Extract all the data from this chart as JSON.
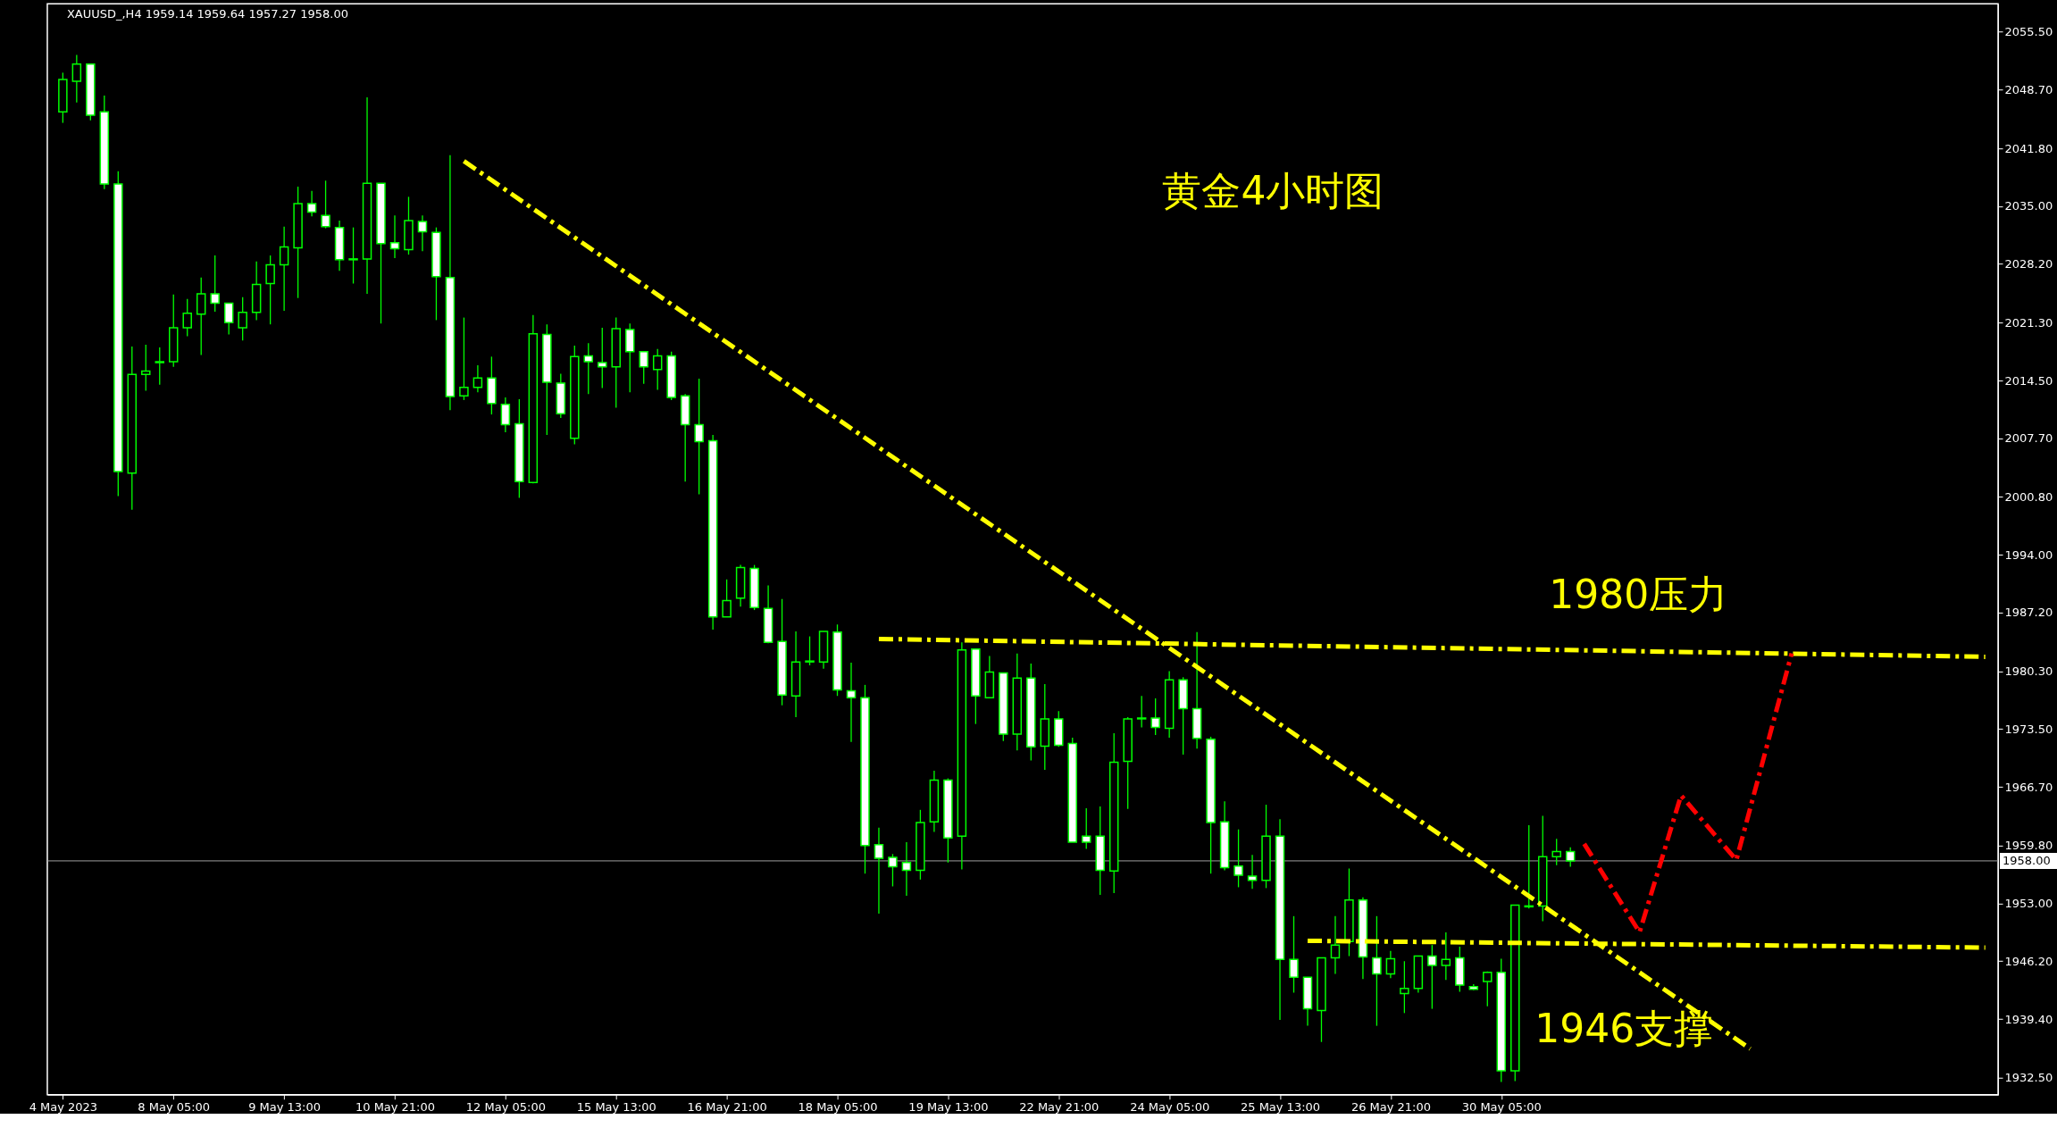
{
  "chart_data": {
    "type": "candlestick",
    "title": "黄金4小时图",
    "annotations": [
      "XAUUSD_,H4  1959.14 1959.64 1957.27 1958.00",
      "1980压力",
      "1946支撑"
    ],
    "categories": [
      "4 May 2023",
      null,
      null,
      null,
      null,
      null,
      null,
      null,
      "8 May 05:00",
      null,
      null,
      null,
      null,
      null,
      null,
      null,
      "9 May 13:00",
      null,
      null,
      null,
      null,
      null,
      null,
      null,
      "10 May 21:00",
      null,
      null,
      null,
      null,
      null,
      null,
      null,
      "12 May 05:00",
      null,
      null,
      null,
      null,
      null,
      null,
      null,
      "15 May 13:00",
      null,
      null,
      null,
      null,
      null,
      null,
      null,
      "16 May 21:00",
      null,
      null,
      null,
      null,
      null,
      null,
      null,
      "18 May 05:00",
      null,
      null,
      null,
      null,
      null,
      null,
      null,
      "19 May 13:00",
      null,
      null,
      null,
      null,
      null,
      null,
      null,
      "22 May 21:00",
      null,
      null,
      null,
      null,
      null,
      null,
      null,
      "24 May 05:00",
      null,
      null,
      null,
      null,
      null,
      null,
      null,
      "25 May 13:00",
      null,
      null,
      null,
      null,
      null,
      null,
      null,
      "26 May 21:00",
      null,
      null,
      null,
      null,
      null,
      null,
      null,
      "30 May 05:00",
      null,
      null,
      null,
      null,
      null,
      null,
      null,
      null,
      null,
      null,
      null,
      null,
      null,
      null,
      null,
      null,
      null,
      null,
      null,
      null,
      null,
      null,
      null,
      null,
      null,
      null,
      null,
      null,
      null,
      null,
      null,
      null,
      null,
      null,
      null
    ],
    "color": "#00ff00",
    "ohlc": [
      [
        2046.1,
        2050.7,
        2044.8,
        2049.9
      ],
      [
        2049.7,
        2052.8,
        2047.2,
        2051.7
      ],
      [
        2051.7,
        2051.8,
        2045.1,
        2045.7
      ],
      [
        2046.1,
        2048.0,
        2037.0,
        2037.6
      ],
      [
        2037.6,
        2039.1,
        2000.9,
        2003.8
      ],
      [
        2003.6,
        2018.5,
        1999.3,
        2015.2
      ],
      [
        2015.2,
        2018.7,
        2013.3,
        2015.6
      ],
      [
        2016.6,
        2018.4,
        2014.0,
        2016.7
      ],
      [
        2016.7,
        2024.6,
        2016.1,
        2020.7
      ],
      [
        2020.7,
        2024.1,
        2019.7,
        2022.4
      ],
      [
        2022.3,
        2026.6,
        2017.5,
        2024.7
      ],
      [
        2024.7,
        2029.2,
        2022.6,
        2023.6
      ],
      [
        2023.6,
        2023.6,
        2019.9,
        2021.3
      ],
      [
        2020.7,
        2024.3,
        2019.2,
        2022.5
      ],
      [
        2022.5,
        2028.5,
        2021.6,
        2025.8
      ],
      [
        2025.9,
        2029.2,
        2021.1,
        2028.1
      ],
      [
        2028.1,
        2032.6,
        2022.7,
        2030.2
      ],
      [
        2030.1,
        2037.3,
        2024.2,
        2035.3
      ],
      [
        2035.3,
        2036.8,
        2033.8,
        2034.3
      ],
      [
        2033.9,
        2038.0,
        2032.4,
        2032.6
      ],
      [
        2032.5,
        2033.3,
        2027.4,
        2028.7
      ],
      [
        2028.7,
        2032.5,
        2025.9,
        2028.8
      ],
      [
        2028.8,
        2047.8,
        2024.7,
        2037.7
      ],
      [
        2037.7,
        2037.7,
        2021.2,
        2030.6
      ],
      [
        2030.7,
        2033.9,
        2028.9,
        2030.0
      ],
      [
        2029.9,
        2036.1,
        2029.3,
        2033.3
      ],
      [
        2033.2,
        2033.9,
        2029.7,
        2032.0
      ],
      [
        2031.9,
        2032.5,
        2021.6,
        2026.7
      ],
      [
        2026.6,
        2041.0,
        2011.0,
        2012.6
      ],
      [
        2012.7,
        2021.9,
        2012.2,
        2013.7
      ],
      [
        2013.7,
        2016.3,
        2013.1,
        2014.8
      ],
      [
        2014.8,
        2017.3,
        2010.5,
        2011.8
      ],
      [
        2011.7,
        2012.5,
        2008.4,
        2009.3
      ],
      [
        2009.4,
        2012.3,
        2000.7,
        2002.6
      ],
      [
        2002.5,
        2022.2,
        2002.4,
        2020.0
      ],
      [
        2019.9,
        2021.1,
        2008.1,
        2014.3
      ],
      [
        2014.2,
        2015.3,
        2010.1,
        2010.6
      ],
      [
        2007.7,
        2018.6,
        2007.0,
        2017.3
      ],
      [
        2017.4,
        2018.9,
        2012.9,
        2016.7
      ],
      [
        2016.6,
        2020.7,
        2013.6,
        2016.1
      ],
      [
        2016.1,
        2021.9,
        2011.3,
        2020.6
      ],
      [
        2020.5,
        2021.2,
        2013.1,
        2017.9
      ],
      [
        2017.9,
        2017.9,
        2014.1,
        2016.1
      ],
      [
        2015.8,
        2018.2,
        2013.4,
        2017.4
      ],
      [
        2017.4,
        2017.9,
        2012.2,
        2012.5
      ],
      [
        2012.7,
        2012.9,
        2002.6,
        2009.3
      ],
      [
        2009.3,
        2014.7,
        2001.1,
        2007.3
      ],
      [
        2007.4,
        2008.1,
        1985.2,
        1986.7
      ],
      [
        1986.7,
        1991.1,
        1986.7,
        1988.6
      ],
      [
        1988.9,
        1992.8,
        1987.9,
        1992.5
      ],
      [
        1992.4,
        1992.8,
        1987.5,
        1987.8
      ],
      [
        1987.7,
        1990.4,
        1983.6,
        1983.7
      ],
      [
        1983.8,
        1988.8,
        1976.3,
        1977.5
      ],
      [
        1977.4,
        1985.0,
        1974.9,
        1981.4
      ],
      [
        1981.4,
        1984.4,
        1981.0,
        1981.5
      ],
      [
        1981.4,
        1985.0,
        1980.6,
        1985.0
      ],
      [
        1984.9,
        1985.8,
        1977.4,
        1978.1
      ],
      [
        1978.0,
        1981.3,
        1972.0,
        1977.2
      ],
      [
        1977.2,
        1978.7,
        1956.5,
        1959.8
      ],
      [
        1959.9,
        1961.9,
        1951.8,
        1958.3
      ],
      [
        1958.4,
        1958.8,
        1955.0,
        1957.3
      ],
      [
        1957.8,
        1960.2,
        1953.9,
        1956.9
      ],
      [
        1956.9,
        1964.0,
        1955.8,
        1962.5
      ],
      [
        1962.6,
        1968.6,
        1961.4,
        1967.5
      ],
      [
        1967.5,
        1967.7,
        1957.8,
        1960.7
      ],
      [
        1960.9,
        1983.7,
        1957.0,
        1982.8
      ],
      [
        1982.9,
        1982.9,
        1974.1,
        1977.4
      ],
      [
        1977.2,
        1982.1,
        1977.2,
        1980.2
      ],
      [
        1980.1,
        1980.1,
        1972.1,
        1972.9
      ],
      [
        1972.9,
        1982.4,
        1971.0,
        1979.5
      ],
      [
        1979.5,
        1981.2,
        1969.8,
        1971.4
      ],
      [
        1971.5,
        1978.8,
        1968.7,
        1974.7
      ],
      [
        1974.7,
        1975.6,
        1971.4,
        1971.6
      ],
      [
        1971.8,
        1972.5,
        1960.2,
        1960.2
      ],
      [
        1960.9,
        1964.2,
        1959.4,
        1960.2
      ],
      [
        1960.9,
        1964.4,
        1954.0,
        1956.9
      ],
      [
        1956.8,
        1973.0,
        1954.2,
        1969.6
      ],
      [
        1969.7,
        1974.9,
        1964.1,
        1974.7
      ],
      [
        1974.7,
        1977.4,
        1973.7,
        1974.8
      ],
      [
        1974.8,
        1977.1,
        1972.8,
        1973.7
      ],
      [
        1973.6,
        1980.3,
        1972.5,
        1979.3
      ],
      [
        1979.3,
        1979.6,
        1970.5,
        1975.9
      ],
      [
        1975.9,
        1984.9,
        1971.2,
        1972.4
      ],
      [
        1972.3,
        1972.6,
        1956.5,
        1962.5
      ],
      [
        1962.6,
        1965.0,
        1956.9,
        1957.2
      ],
      [
        1957.4,
        1961.7,
        1954.9,
        1956.3
      ],
      [
        1956.2,
        1958.7,
        1954.7,
        1955.7
      ],
      [
        1955.7,
        1964.6,
        1954.8,
        1960.9
      ],
      [
        1960.9,
        1962.9,
        1939.3,
        1946.4
      ],
      [
        1946.4,
        1951.5,
        1942.5,
        1944.3
      ],
      [
        1944.3,
        1944.3,
        1938.6,
        1940.6
      ],
      [
        1940.4,
        1946.6,
        1936.7,
        1946.6
      ],
      [
        1946.6,
        1951.5,
        1944.7,
        1948.1
      ],
      [
        1948.5,
        1957.1,
        1946.8,
        1953.4
      ],
      [
        1953.4,
        1953.7,
        1944.1,
        1946.7
      ],
      [
        1946.6,
        1951.5,
        1938.6,
        1944.7
      ],
      [
        1944.7,
        1947.4,
        1944.2,
        1946.5
      ],
      [
        1942.4,
        1946.2,
        1940.1,
        1943.0
      ],
      [
        1943.0,
        1946.8,
        1942.5,
        1946.8
      ],
      [
        1946.8,
        1948.1,
        1940.6,
        1945.7
      ],
      [
        1945.7,
        1949.6,
        1944.0,
        1946.4
      ],
      [
        1946.6,
        1947.9,
        1942.6,
        1943.4
      ],
      [
        1943.2,
        1943.5,
        1942.8,
        1942.9
      ],
      [
        1943.8,
        1945.0,
        1940.9,
        1944.9
      ],
      [
        1944.9,
        1946.5,
        1932.0,
        1933.3
      ],
      [
        1933.3,
        1952.8,
        1932.1,
        1952.8
      ],
      [
        1952.6,
        1962.2,
        1952.4,
        1952.7
      ],
      [
        1952.7,
        1963.3,
        1950.9,
        1958.5
      ],
      [
        1958.5,
        1960.6,
        1957.5,
        1959.1
      ],
      [
        1959.1,
        1959.6,
        1957.3,
        1958.0
      ],
      null,
      null,
      null,
      null,
      null,
      null,
      null,
      null,
      null,
      null,
      null,
      null,
      null,
      null,
      null,
      null,
      null,
      null,
      null,
      null,
      null,
      null,
      null,
      null,
      null,
      null,
      null,
      null,
      null,
      null
    ],
    "series": [
      {
        "type": "line",
        "color": "#ffff00",
        "values": [
          null,
          null,
          null,
          null,
          null,
          null,
          null,
          null,
          null,
          null,
          null,
          null,
          null,
          null,
          null,
          null,
          null,
          null,
          null,
          null,
          null,
          null,
          null,
          null,
          null,
          null,
          null,
          null,
          null,
          2040.3,
          null,
          null,
          null,
          null,
          null,
          null,
          null,
          null,
          null,
          null,
          null,
          null,
          null,
          null,
          null,
          null,
          null,
          null,
          null,
          null,
          null,
          null,
          null,
          null,
          null,
          null,
          null,
          null,
          null,
          null,
          null,
          null,
          null,
          null,
          null,
          null,
          null,
          null,
          null,
          null,
          null,
          null,
          null,
          null,
          null,
          null,
          null,
          null,
          null,
          null,
          null,
          null,
          null,
          null,
          null,
          null,
          null,
          null,
          null,
          null,
          null,
          null,
          null,
          null,
          null,
          null,
          null,
          null,
          null,
          null,
          null,
          null,
          null,
          null,
          null,
          null,
          null,
          null,
          null,
          null,
          null,
          null,
          null,
          null,
          null,
          null,
          null,
          null,
          null,
          null,
          null,
          null,
          1935.9,
          null,
          null,
          null,
          null,
          null,
          null,
          null,
          null,
          null,
          null,
          null,
          null,
          null,
          null,
          null,
          null,
          null
        ]
      },
      {
        "type": "line",
        "color": "#ffff00",
        "values": [
          null,
          null,
          null,
          null,
          null,
          null,
          null,
          null,
          null,
          null,
          null,
          null,
          null,
          null,
          null,
          null,
          null,
          null,
          null,
          null,
          null,
          null,
          null,
          null,
          null,
          null,
          null,
          null,
          null,
          null,
          null,
          null,
          null,
          null,
          null,
          null,
          null,
          null,
          null,
          null,
          null,
          null,
          null,
          null,
          null,
          null,
          null,
          null,
          null,
          null,
          null,
          null,
          null,
          null,
          null,
          null,
          null,
          null,
          null,
          1984.1,
          null,
          null,
          null,
          null,
          null,
          null,
          null,
          null,
          null,
          null,
          null,
          null,
          null,
          null,
          null,
          null,
          null,
          null,
          null,
          null,
          null,
          null,
          null,
          null,
          null,
          null,
          null,
          null,
          null,
          null,
          null,
          null,
          null,
          null,
          null,
          null,
          null,
          null,
          null,
          null,
          null,
          null,
          null,
          null,
          null,
          null,
          null,
          null,
          null,
          null,
          null,
          null,
          null,
          null,
          null,
          null,
          null,
          null,
          null,
          null,
          null,
          null,
          null,
          null,
          null,
          null,
          null,
          null,
          null,
          null,
          null,
          null,
          null,
          null,
          null,
          null,
          null,
          null,
          null,
          1982.0
        ]
      },
      {
        "type": "line",
        "color": "#ffff00",
        "values": [
          null,
          null,
          null,
          null,
          null,
          null,
          null,
          null,
          null,
          null,
          null,
          null,
          null,
          null,
          null,
          null,
          null,
          null,
          null,
          null,
          null,
          null,
          null,
          null,
          null,
          null,
          null,
          null,
          null,
          null,
          null,
          null,
          null,
          null,
          null,
          null,
          null,
          null,
          null,
          null,
          null,
          null,
          null,
          null,
          null,
          null,
          null,
          null,
          null,
          null,
          null,
          null,
          null,
          null,
          null,
          null,
          null,
          null,
          null,
          null,
          null,
          null,
          null,
          null,
          null,
          null,
          null,
          null,
          null,
          null,
          null,
          null,
          null,
          null,
          null,
          null,
          null,
          null,
          null,
          null,
          null,
          null,
          null,
          null,
          null,
          null,
          null,
          null,
          null,
          null,
          1948.6,
          null,
          null,
          null,
          null,
          null,
          null,
          null,
          null,
          null,
          null,
          null,
          null,
          null,
          null,
          null,
          null,
          null,
          null,
          null,
          null,
          null,
          null,
          null,
          null,
          null,
          null,
          null,
          null,
          null,
          null,
          null,
          null,
          null,
          null,
          null,
          null,
          null,
          null,
          null,
          null,
          null,
          null,
          null,
          null,
          null,
          null,
          null,
          null,
          1947.8
        ]
      },
      {
        "type": "line",
        "color": "#ff0000",
        "values": [
          null,
          null,
          null,
          null,
          null,
          null,
          null,
          null,
          null,
          null,
          null,
          null,
          null,
          null,
          null,
          null,
          null,
          null,
          null,
          null,
          null,
          null,
          null,
          null,
          null,
          null,
          null,
          null,
          null,
          null,
          null,
          null,
          null,
          null,
          null,
          null,
          null,
          null,
          null,
          null,
          null,
          null,
          null,
          null,
          null,
          null,
          null,
          null,
          null,
          null,
          null,
          null,
          null,
          null,
          null,
          null,
          null,
          null,
          null,
          null,
          null,
          null,
          null,
          null,
          null,
          null,
          null,
          null,
          null,
          null,
          null,
          null,
          null,
          null,
          null,
          null,
          null,
          null,
          null,
          null,
          null,
          null,
          null,
          null,
          null,
          null,
          null,
          null,
          null,
          null,
          null,
          null,
          null,
          null,
          null,
          null,
          null,
          null,
          null,
          null,
          null,
          null,
          null,
          null,
          null,
          null,
          null,
          null,
          null,
          null,
          1960.0,
          null,
          null,
          null,
          1949.6,
          null,
          null,
          1965.7,
          null,
          null,
          null,
          1958.1,
          null,
          null,
          null,
          1982.4,
          null,
          null,
          null,
          null,
          null,
          null,
          null,
          null,
          null,
          null,
          null,
          null,
          null,
          null
        ]
      }
    ],
    "line_style": "dashed",
    "ylim": [
      1930.5,
      2058.8
    ],
    "yticks": [
      {
        "value": 2055.5,
        "label": "2055.50"
      },
      {
        "value": 2048.7,
        "label": "2048.70"
      },
      {
        "value": 2041.8,
        "label": "2041.80"
      },
      {
        "value": 2035.0,
        "label": "2035.00"
      },
      {
        "value": 2028.2,
        "label": "2028.20"
      },
      {
        "value": 2021.3,
        "label": "2021.30"
      },
      {
        "value": 2014.5,
        "label": "2014.50"
      },
      {
        "value": 2007.7,
        "label": "2007.70"
      },
      {
        "value": 2000.8,
        "label": "2000.80"
      },
      {
        "value": 1994.0,
        "label": "1994.00"
      },
      {
        "value": 1987.2,
        "label": "1987.20"
      },
      {
        "value": 1980.3,
        "label": "1980.30"
      },
      {
        "value": 1973.5,
        "label": "1973.50"
      },
      {
        "value": 1966.7,
        "label": "1966.70"
      },
      {
        "value": 1959.8,
        "label": "1959.80"
      },
      {
        "value": 1953.0,
        "label": "1953.00"
      },
      {
        "value": 1946.2,
        "label": "1946.20"
      },
      {
        "value": 1939.4,
        "label": "1939.40"
      },
      {
        "value": 1932.5,
        "label": "1932.50"
      }
    ],
    "ref_lines": [
      {
        "axis": "y",
        "value": 1958.0,
        "label": "1958.00",
        "color": "#a0a0a0"
      }
    ],
    "marker": "none"
  }
}
